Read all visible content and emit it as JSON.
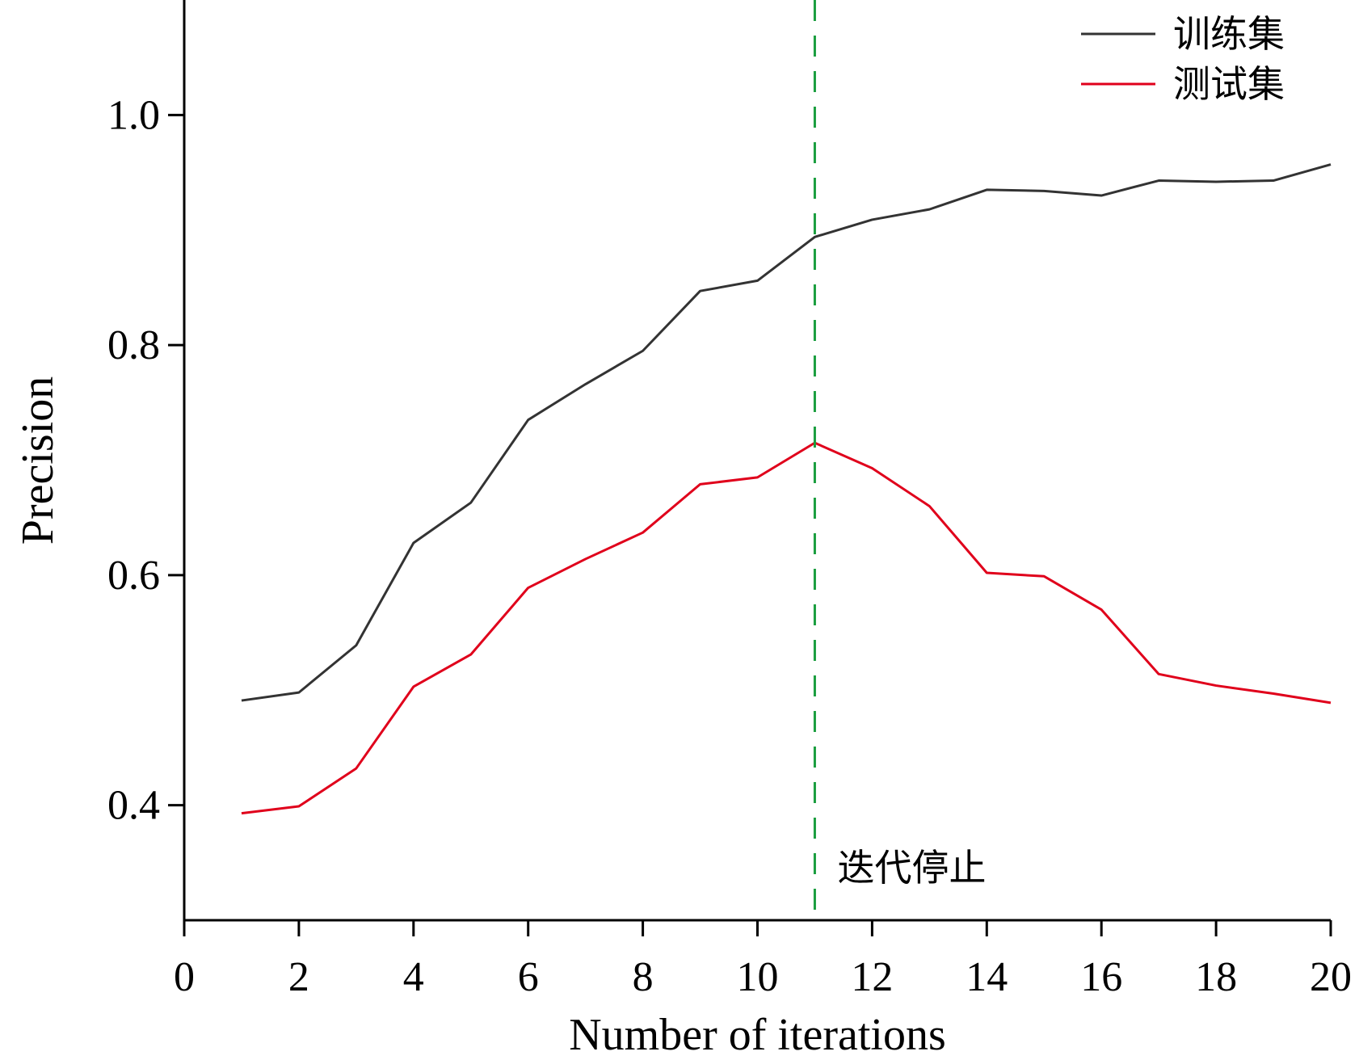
{
  "chart_data": {
    "type": "line",
    "xlabel": "Number of iterations",
    "ylabel": "Precision",
    "xlim": [
      0,
      20
    ],
    "ylim": [
      0.3,
      1.1
    ],
    "xticks": [
      0,
      2,
      4,
      6,
      8,
      10,
      12,
      14,
      16,
      18,
      20
    ],
    "xtick_labels": [
      "0",
      "2",
      "4",
      "6",
      "8",
      "10",
      "12",
      "14",
      "16",
      "18",
      "20"
    ],
    "yticks": [
      0.4,
      0.6,
      0.8,
      1.0
    ],
    "ytick_labels": [
      "0.4",
      "0.6",
      "0.8",
      "1.0"
    ],
    "grid": false,
    "legend": "top-right",
    "x": [
      1,
      2,
      3,
      4,
      5,
      6,
      7,
      8,
      9,
      10,
      11,
      12,
      13,
      14,
      15,
      16,
      17,
      18,
      19,
      20
    ],
    "series": [
      {
        "name": "训练集",
        "color": "#333333",
        "values": [
          0.491,
          0.498,
          0.539,
          0.628,
          0.663,
          0.735,
          0.766,
          0.795,
          0.847,
          0.856,
          0.894,
          0.909,
          0.918,
          0.935,
          0.934,
          0.93,
          0.943,
          0.942,
          0.943,
          0.957
        ]
      },
      {
        "name": "测试集",
        "color": "#e0001b",
        "values": [
          0.393,
          0.399,
          0.432,
          0.503,
          0.531,
          0.589,
          0.614,
          0.637,
          0.679,
          0.685,
          0.715,
          0.693,
          0.66,
          0.602,
          0.599,
          0.57,
          0.514,
          0.504,
          0.497,
          0.489
        ]
      }
    ],
    "annotations": [
      {
        "type": "vline",
        "x": 11,
        "style": "dashed",
        "color": "#1a9e3f",
        "label": "迭代停止"
      }
    ]
  }
}
